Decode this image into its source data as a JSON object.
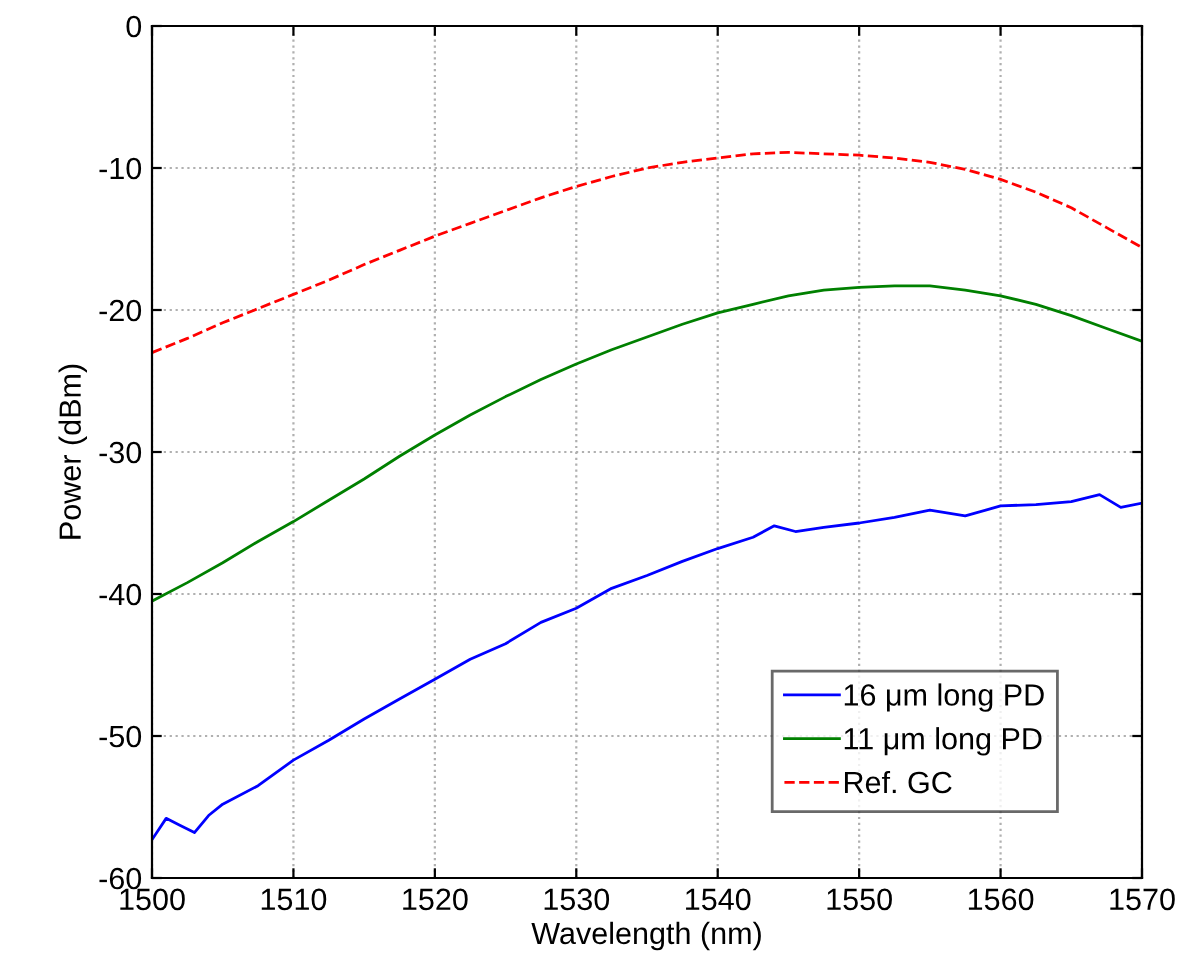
{
  "chart_data": {
    "type": "line",
    "xlabel": "Wavelength (nm)",
    "ylabel": "Power (dBm)",
    "xlim": [
      1500,
      1570
    ],
    "xticks": [
      1500,
      1510,
      1520,
      1530,
      1540,
      1550,
      1560,
      1570
    ],
    "ylim": [
      -60,
      0
    ],
    "yticks": [
      -60,
      -50,
      -40,
      -30,
      -20,
      -10,
      0
    ],
    "grid": true,
    "legend": "bottom right",
    "marker": "none",
    "series": [
      {
        "name": "16 μm long PD",
        "color": "#0000ff",
        "line_style": "solid",
        "x": [
          1500,
          1501,
          1502,
          1503,
          1504,
          1505,
          1507.5,
          1510,
          1512.5,
          1515,
          1517.5,
          1520,
          1522.5,
          1525,
          1527.5,
          1530,
          1532.5,
          1535,
          1537.5,
          1540,
          1542.5,
          1544,
          1545.5,
          1547.5,
          1550,
          1552.5,
          1555,
          1557.5,
          1560,
          1562.5,
          1565,
          1567,
          1568.5,
          1570
        ],
        "values": [
          -57.3,
          -55.8,
          -56.3,
          -56.8,
          -55.6,
          -54.8,
          -53.5,
          -51.7,
          -50.3,
          -48.8,
          -47.4,
          -46.0,
          -44.6,
          -43.5,
          -42.0,
          -41.0,
          -39.6,
          -38.7,
          -37.7,
          -36.8,
          -36.0,
          -35.2,
          -35.6,
          -35.3,
          -35.0,
          -34.6,
          -34.1,
          -34.5,
          -33.8,
          -33.7,
          -33.5,
          -33.0,
          -33.9,
          -33.6
        ]
      },
      {
        "name": "11 μm long PD",
        "color": "#008000",
        "line_style": "solid",
        "x": [
          1500,
          1502.5,
          1505,
          1507.5,
          1510,
          1512.5,
          1515,
          1517.5,
          1520,
          1522.5,
          1525,
          1527.5,
          1530,
          1532.5,
          1535,
          1537.5,
          1540,
          1542.5,
          1545,
          1547.5,
          1550,
          1552.5,
          1555,
          1557.5,
          1560,
          1562.5,
          1565,
          1567.5,
          1570
        ],
        "values": [
          -40.5,
          -39.2,
          -37.8,
          -36.3,
          -34.9,
          -33.4,
          -31.9,
          -30.3,
          -28.8,
          -27.4,
          -26.1,
          -24.9,
          -23.8,
          -22.8,
          -21.9,
          -21.0,
          -20.2,
          -19.6,
          -19.0,
          -18.6,
          -18.4,
          -18.3,
          -18.3,
          -18.6,
          -19.0,
          -19.6,
          -20.4,
          -21.3,
          -22.2
        ]
      },
      {
        "name": "Ref. GC",
        "color": "#ff0000",
        "line_style": "dashed",
        "x": [
          1500,
          1502.5,
          1505,
          1507.5,
          1510,
          1512.5,
          1515,
          1517.5,
          1520,
          1522.5,
          1525,
          1527.5,
          1530,
          1532.5,
          1535,
          1537.5,
          1540,
          1542.5,
          1545,
          1547.5,
          1550,
          1552.5,
          1555,
          1557.5,
          1560,
          1562.5,
          1565,
          1567.5,
          1570
        ],
        "values": [
          -23.0,
          -22.0,
          -20.9,
          -19.9,
          -18.9,
          -17.9,
          -16.8,
          -15.8,
          -14.8,
          -13.9,
          -13.0,
          -12.1,
          -11.3,
          -10.6,
          -10.0,
          -9.6,
          -9.3,
          -9.0,
          -8.9,
          -9.0,
          -9.1,
          -9.3,
          -9.6,
          -10.1,
          -10.8,
          -11.7,
          -12.8,
          -14.2,
          -15.6
        ]
      }
    ]
  }
}
